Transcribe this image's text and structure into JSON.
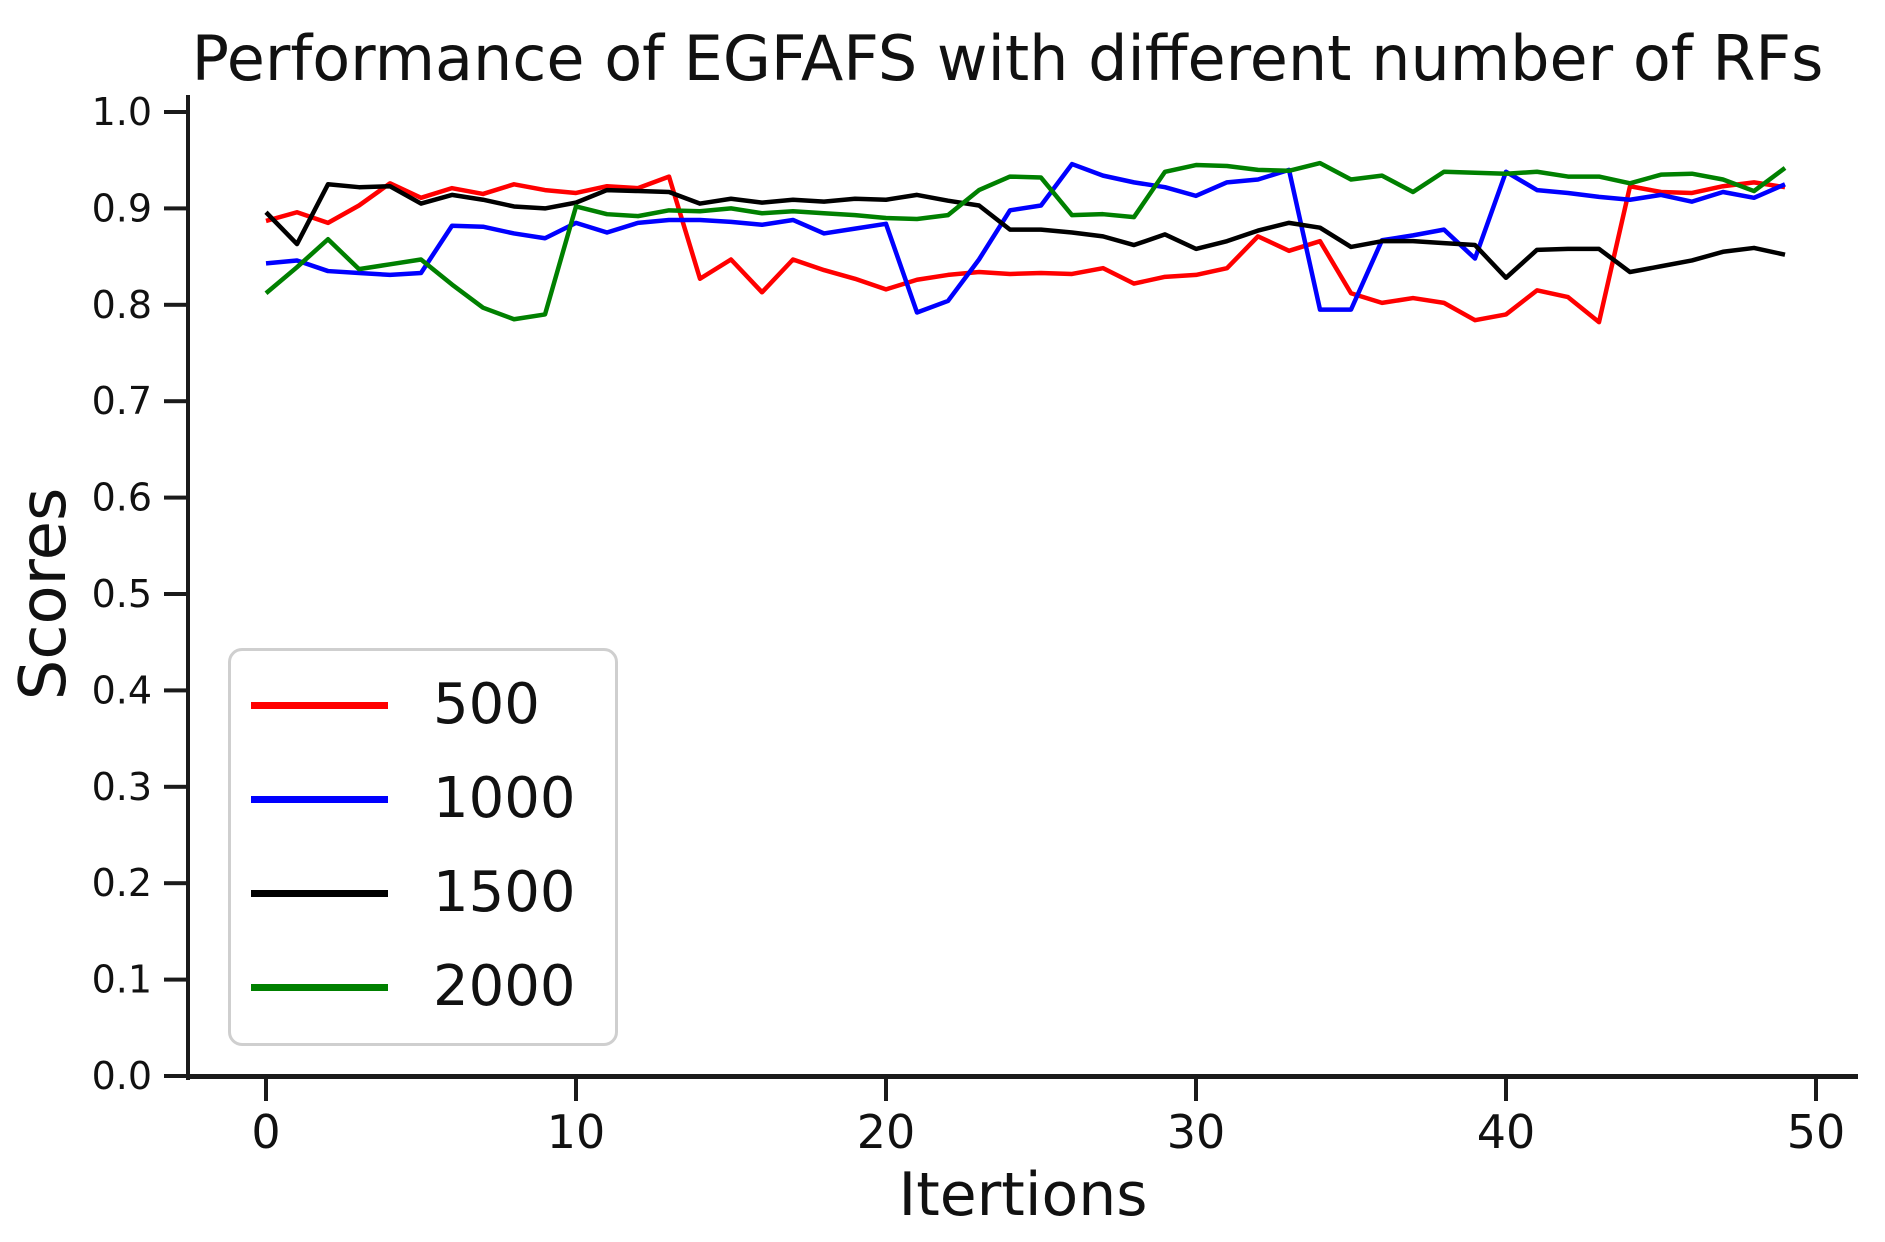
{
  "chart_data": {
    "type": "line",
    "title": "Performance of EGFAFS with different number of RFs",
    "xlabel": "Itertions",
    "ylabel": "Scores",
    "xlim": [
      -2.5,
      51.4
    ],
    "ylim": [
      0.0,
      1.02
    ],
    "grid": false,
    "legend_position": "lower left",
    "x_ticks": [
      "0",
      "10",
      "20",
      "30",
      "40",
      "50"
    ],
    "y_ticks": [
      "0.0",
      "0.1",
      "0.2",
      "0.3",
      "0.4",
      "0.5",
      "0.6",
      "0.7",
      "0.8",
      "0.9",
      "1.0"
    ],
    "x_start": 0,
    "x_step": 1,
    "series": [
      {
        "name": "500",
        "color": "#ff0000",
        "values": [
          0.887,
          0.896,
          0.885,
          0.903,
          0.926,
          0.911,
          0.921,
          0.915,
          0.925,
          0.919,
          0.916,
          0.923,
          0.921,
          0.933,
          0.827,
          0.847,
          0.813,
          0.847,
          0.836,
          0.827,
          0.816,
          0.826,
          0.831,
          0.834,
          0.832,
          0.833,
          0.832,
          0.838,
          0.822,
          0.829,
          0.831,
          0.838,
          0.871,
          0.856,
          0.866,
          0.812,
          0.802,
          0.807,
          0.802,
          0.784,
          0.79,
          0.815,
          0.808,
          0.782,
          0.923,
          0.917,
          0.916,
          0.923,
          0.927,
          0.922
        ]
      },
      {
        "name": "1000",
        "color": "#0000ff",
        "values": [
          0.843,
          0.846,
          0.835,
          0.833,
          0.831,
          0.833,
          0.882,
          0.881,
          0.874,
          0.869,
          0.885,
          0.875,
          0.885,
          0.888,
          0.888,
          0.886,
          0.883,
          0.888,
          0.874,
          0.879,
          0.884,
          0.792,
          0.804,
          0.847,
          0.898,
          0.903,
          0.946,
          0.934,
          0.927,
          0.922,
          0.913,
          0.927,
          0.93,
          0.94,
          0.795,
          0.795,
          0.867,
          0.872,
          0.878,
          0.848,
          0.938,
          0.919,
          0.916,
          0.912,
          0.909,
          0.914,
          0.907,
          0.917,
          0.911,
          0.925
        ]
      },
      {
        "name": "1500",
        "color": "#000000",
        "values": [
          0.896,
          0.863,
          0.925,
          0.922,
          0.923,
          0.905,
          0.914,
          0.909,
          0.902,
          0.9,
          0.906,
          0.919,
          0.918,
          0.917,
          0.905,
          0.91,
          0.906,
          0.909,
          0.907,
          0.91,
          0.909,
          0.914,
          0.908,
          0.903,
          0.878,
          0.878,
          0.875,
          0.871,
          0.862,
          0.873,
          0.858,
          0.866,
          0.877,
          0.885,
          0.88,
          0.86,
          0.866,
          0.866,
          0.864,
          0.862,
          0.828,
          0.857,
          0.858,
          0.858,
          0.834,
          0.84,
          0.846,
          0.855,
          0.859,
          0.852
        ]
      },
      {
        "name": "2000",
        "color": "#008000",
        "values": [
          0.812,
          0.839,
          0.868,
          0.837,
          0.842,
          0.847,
          0.821,
          0.797,
          0.785,
          0.79,
          0.902,
          0.894,
          0.892,
          0.898,
          0.897,
          0.9,
          0.895,
          0.897,
          0.895,
          0.893,
          0.89,
          0.889,
          0.893,
          0.919,
          0.933,
          0.932,
          0.893,
          0.894,
          0.891,
          0.938,
          0.945,
          0.944,
          0.94,
          0.939,
          0.947,
          0.93,
          0.934,
          0.917,
          0.938,
          0.937,
          0.936,
          0.938,
          0.933,
          0.933,
          0.926,
          0.935,
          0.936,
          0.93,
          0.918,
          0.942
        ]
      }
    ]
  }
}
